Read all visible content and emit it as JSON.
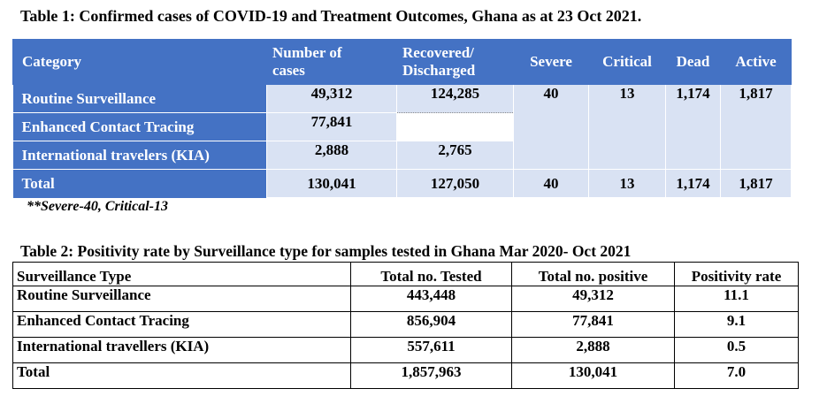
{
  "table1": {
    "title": "Table 1: Confirmed cases of COVID-19 and Treatment Outcomes, Ghana as at 23 Oct 2021.",
    "headers": {
      "category": "Category",
      "cases_l1": "Number of",
      "cases_l2": "cases",
      "recovered_l1": "Recovered/",
      "recovered_l2": "Discharged",
      "severe": "Severe",
      "critical": "Critical",
      "dead": "Dead",
      "active": "Active"
    },
    "rows": [
      {
        "label": "Routine Surveillance",
        "cases": "49,312",
        "recovered": "124,285",
        "severe": "40",
        "critical": "13",
        "dead": "1,174",
        "active": "1,817"
      },
      {
        "label": "Enhanced Contact Tracing",
        "cases": "77,841"
      },
      {
        "label": "International travelers (KIA)",
        "cases": "2,888",
        "recovered": "2,765"
      }
    ],
    "total": {
      "label": "Total",
      "cases": "130,041",
      "recovered": "127,050",
      "severe": "40",
      "critical": "13",
      "dead": "1,174",
      "active": "1,817"
    },
    "note": "**Severe-40, Critical-13"
  },
  "table2": {
    "title": "Table 2: Positivity rate by Surveillance type for samples tested in Ghana Mar 2020- Oct 2021",
    "headers": [
      "Surveillance Type",
      "Total no. Tested",
      "Total no. positive",
      "Positivity rate"
    ],
    "rows": [
      [
        "Routine Surveillance",
        "443,448",
        "49,312",
        "11.1"
      ],
      [
        "Enhanced Contact Tracing",
        "856,904",
        "77,841",
        "9.1"
      ],
      [
        "International travellers (KIA)",
        "557,611",
        "2,888",
        "0.5"
      ],
      [
        "Total",
        "1,857,963",
        "130,041",
        "7.0"
      ]
    ]
  }
}
